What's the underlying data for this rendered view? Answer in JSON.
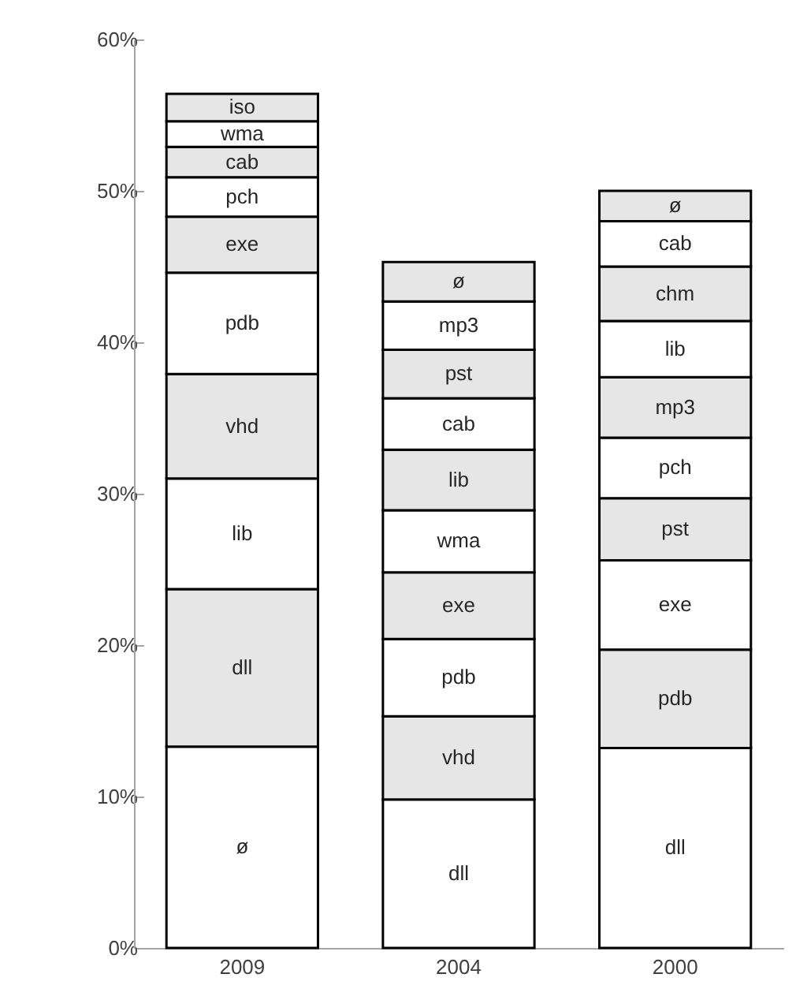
{
  "chart_data": {
    "type": "bar",
    "stacked": true,
    "categories": [
      "2009",
      "2004",
      "2000"
    ],
    "series": [
      {
        "color": "#ffffff",
        "values": [
          13.3,
          9.8,
          13.2
        ],
        "value_labels": [
          "ø",
          "dll",
          "dll"
        ]
      },
      {
        "color": "#e6e6e6",
        "values": [
          10.4,
          5.5,
          6.5
        ],
        "value_labels": [
          "dll",
          "vhd",
          "pdb"
        ]
      },
      {
        "color": "#ffffff",
        "values": [
          7.3,
          5.1,
          5.9
        ],
        "value_labels": [
          "lib",
          "pdb",
          "exe"
        ]
      },
      {
        "color": "#e6e6e6",
        "values": [
          6.9,
          4.4,
          4.1
        ],
        "value_labels": [
          "vhd",
          "exe",
          "pst"
        ]
      },
      {
        "color": "#ffffff",
        "values": [
          6.7,
          4.1,
          4.0
        ],
        "value_labels": [
          "pdb",
          "wma",
          "pch"
        ]
      },
      {
        "color": "#e6e6e6",
        "values": [
          3.7,
          4.0,
          4.0
        ],
        "value_labels": [
          "exe",
          "lib",
          "mp3"
        ]
      },
      {
        "color": "#ffffff",
        "values": [
          2.6,
          3.4,
          3.7
        ],
        "value_labels": [
          "pch",
          "cab",
          "lib"
        ]
      },
      {
        "color": "#e6e6e6",
        "values": [
          2.0,
          3.2,
          3.6
        ],
        "value_labels": [
          "cab",
          "pst",
          "chm"
        ]
      },
      {
        "color": "#ffffff",
        "values": [
          1.7,
          3.2,
          3.0
        ],
        "value_labels": [
          "wma",
          "mp3",
          "cab"
        ]
      },
      {
        "color": "#e6e6e6",
        "values": [
          1.8,
          2.6,
          2.0
        ],
        "value_labels": [
          "iso",
          "ø",
          "ø"
        ]
      }
    ],
    "ylim": [
      0,
      60
    ],
    "yticks": [
      {
        "value": 0,
        "label": "0%"
      },
      {
        "value": 10,
        "label": "10%"
      },
      {
        "value": 20,
        "label": "20%"
      },
      {
        "value": 30,
        "label": "30%"
      },
      {
        "value": 40,
        "label": "40%"
      },
      {
        "value": 50,
        "label": "50%"
      },
      {
        "value": 60,
        "label": "60%"
      }
    ],
    "grid": false
  }
}
